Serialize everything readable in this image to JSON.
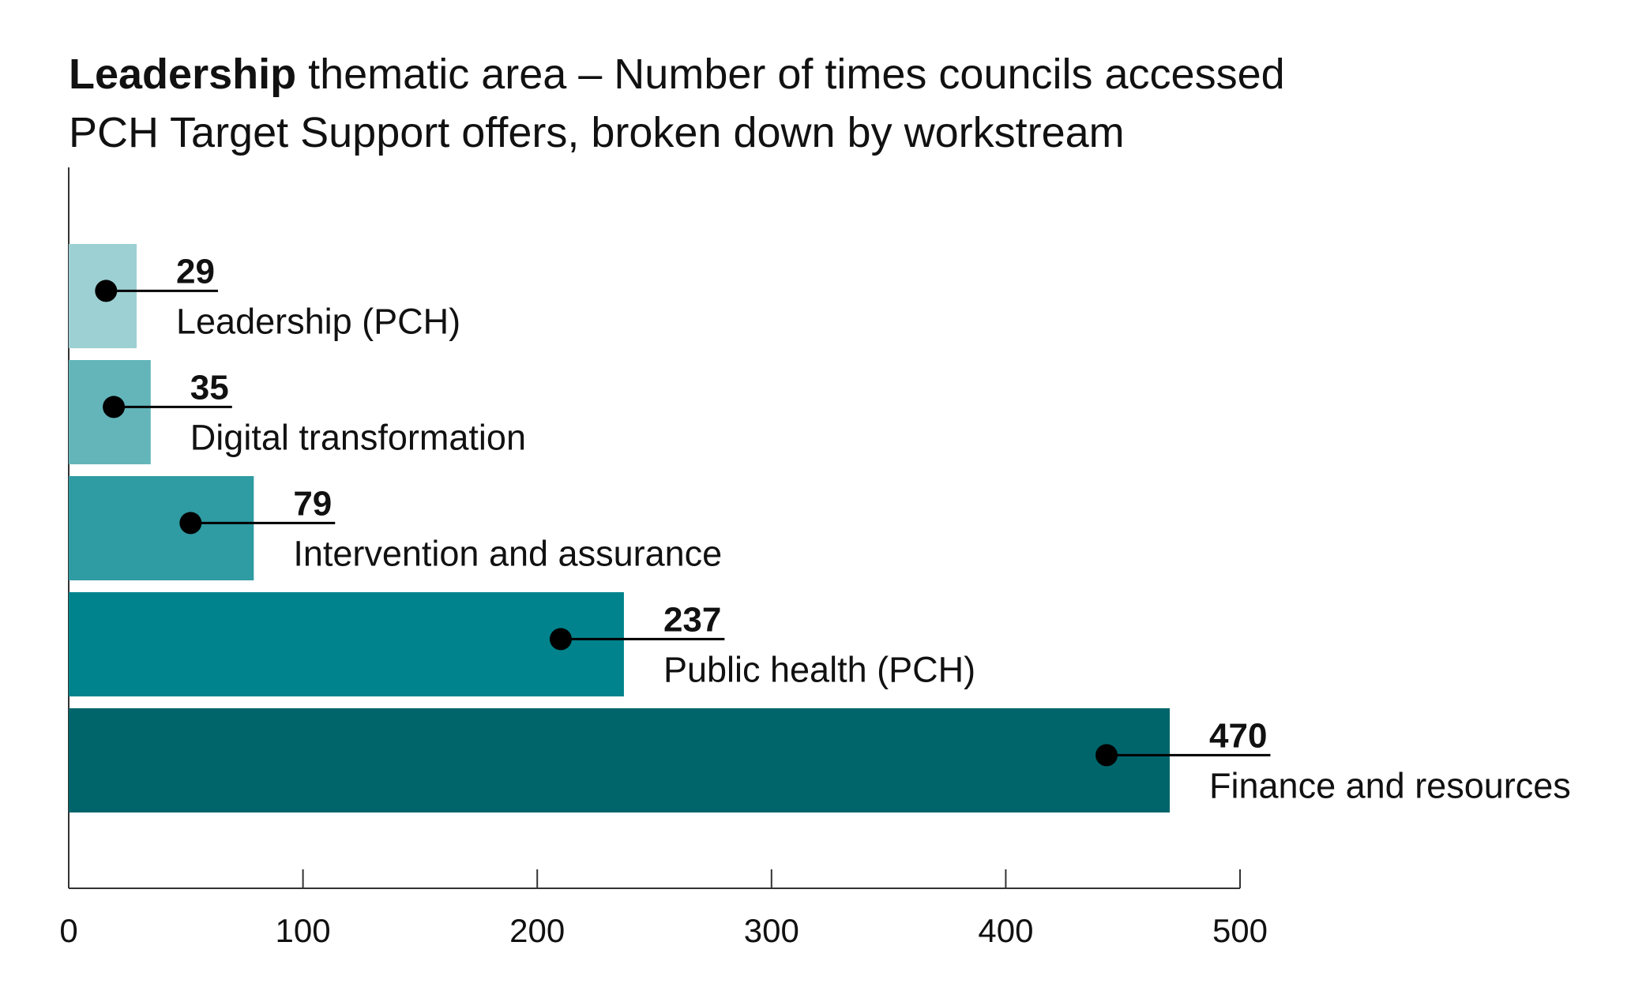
{
  "chart_data": {
    "type": "bar",
    "title": [
      "Leadership",
      "thematic area – Number of times councils accessed",
      "PCH Target Support offers, broken down by workstream"
    ],
    "categories": [
      "Leadership (PCH)",
      "Digital transformation",
      "Intervention and assurance",
      "Public health (PCH)",
      "Finance and resources"
    ],
    "values": [
      29,
      35,
      79,
      237,
      470
    ],
    "colors": [
      "#9dd0d3",
      "#63b5ba",
      "#2f9ba2",
      "#00838c",
      "#00656b"
    ],
    "xlim": [
      0,
      500
    ],
    "xticks": [
      0,
      100,
      200,
      300,
      400,
      500
    ]
  }
}
